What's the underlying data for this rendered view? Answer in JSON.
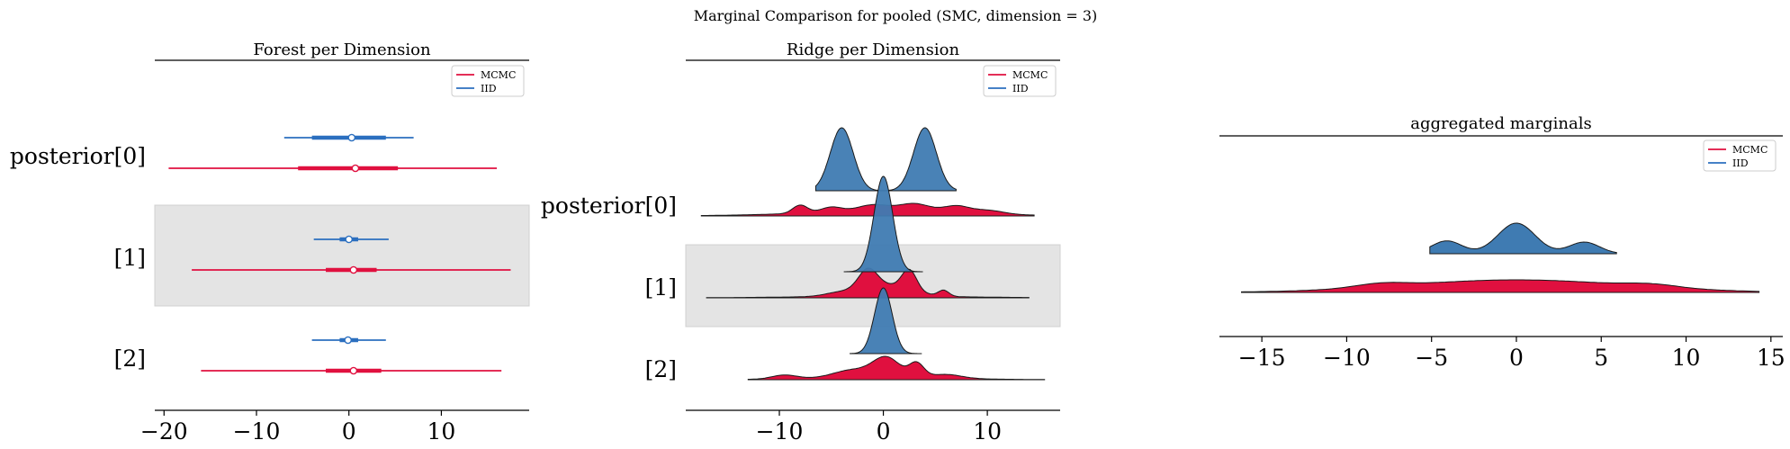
{
  "figure": {
    "suptitle": "Marginal Comparison for pooled (SMC, dimension = 3)"
  },
  "colors": {
    "mcmc": "#e0103f",
    "iid": "#2b6fbf",
    "iid_fill": "#3f7bb2",
    "band": "#e4e4e4",
    "axis": "#000000"
  },
  "legend": {
    "entries": [
      {
        "name": "MCMC",
        "color": "#e0103f"
      },
      {
        "name": "IID",
        "color": "#2b6fbf"
      }
    ]
  },
  "chart_data": [
    {
      "type": "forest",
      "title": "Forest per Dimension",
      "xlim": [
        -21,
        19.5
      ],
      "xticks": [
        -20,
        -10,
        0,
        10
      ],
      "ylabels": [
        "posterior[0]",
        "[1]",
        "[2]"
      ],
      "shaded_rows": [
        1
      ],
      "series": [
        {
          "name": "MCMC",
          "rows": [
            {
              "low": -19.5,
              "q1": -5.5,
              "median": 0.7,
              "q3": 5.3,
              "high": 16.0
            },
            {
              "low": -17.0,
              "q1": -2.5,
              "median": 0.5,
              "q3": 3.0,
              "high": 17.5
            },
            {
              "low": -16.0,
              "q1": -2.5,
              "median": 0.5,
              "q3": 3.5,
              "high": 16.5
            }
          ]
        },
        {
          "name": "IID",
          "rows": [
            {
              "low": -7.0,
              "q1": -4.0,
              "median": 0.3,
              "q3": 4.0,
              "high": 7.0
            },
            {
              "low": -3.8,
              "q1": -1.0,
              "median": 0.0,
              "q3": 1.0,
              "high": 4.3
            },
            {
              "low": -4.0,
              "q1": -1.0,
              "median": -0.1,
              "q3": 1.0,
              "high": 4.0
            }
          ]
        }
      ]
    },
    {
      "type": "ridge",
      "title": "Ridge per Dimension",
      "xlim": [
        -19,
        17
      ],
      "xticks": [
        -10,
        0,
        10
      ],
      "ylabels": [
        "posterior[0]",
        "[1]",
        "[2]"
      ],
      "shaded_rows": [
        1
      ],
      "series": [
        {
          "name": "MCMC",
          "rows": [
            {
              "range": [
                -17.5,
                14.5
              ],
              "peaks": [
                [
                  -8,
                  0.55,
                  0.7
                ],
                [
                  -5,
                  0.35,
                  1.0
                ],
                [
                  -1,
                  0.45,
                  1.5
                ],
                [
                  3,
                  0.55,
                  1.5
                ],
                [
                  7,
                  0.45,
                  1.2
                ],
                [
                  10,
                  0.25,
                  1.5
                ],
                [
                  0,
                  0.3,
                  8
                ]
              ]
            },
            {
              "range": [
                -17,
                14
              ],
              "peaks": [
                [
                  -1.5,
                  1.0,
                  0.9
                ],
                [
                  2.5,
                  1.0,
                  0.7
                ],
                [
                  0.5,
                  0.55,
                  2.2
                ],
                [
                  5.8,
                  0.3,
                  0.5
                ],
                [
                  -4,
                  0.2,
                  1.5
                ],
                [
                  0,
                  0.08,
                  8
                ]
              ]
            },
            {
              "range": [
                -13,
                15.5
              ],
              "peaks": [
                [
                  0.3,
                  1.0,
                  1.3
                ],
                [
                  3.2,
                  0.7,
                  0.7
                ],
                [
                  -3,
                  0.4,
                  1.8
                ],
                [
                  -9.5,
                  0.2,
                  1.2
                ],
                [
                  6,
                  0.2,
                  1.5
                ],
                [
                  0,
                  0.1,
                  7
                ]
              ]
            }
          ]
        },
        {
          "name": "IID",
          "rows": [
            {
              "range": [
                -6.5,
                7
              ],
              "peaks": [
                [
                  -4,
                  1.0,
                  1.1
                ],
                [
                  4,
                  1.0,
                  1.1
                ]
              ]
            },
            {
              "range": [
                -3.8,
                3.8
              ],
              "peaks": [
                [
                  0,
                  1.0,
                  0.9
                ]
              ]
            },
            {
              "range": [
                -3.2,
                3.7
              ],
              "peaks": [
                [
                  0,
                  1.0,
                  0.85
                ]
              ]
            }
          ]
        }
      ]
    },
    {
      "type": "density",
      "title": "aggregated marginals",
      "xlim": [
        -17.5,
        15.7
      ],
      "xticks": [
        -15,
        -10,
        -5,
        0,
        5,
        10,
        15
      ],
      "xticklabels": [
        "−15",
        "−10",
        "−5",
        "0",
        "5",
        "10",
        "15"
      ],
      "series": [
        {
          "name": "MCMC",
          "range": [
            -16.2,
            14.3
          ],
          "peaks": [
            [
              0,
              0.85,
              6.5
            ],
            [
              -8,
              0.25,
              1.5
            ],
            [
              8,
              0.2,
              1.5
            ]
          ]
        },
        {
          "name": "IID",
          "range": [
            -5.1,
            5.9
          ],
          "peaks": [
            [
              0,
              1.0,
              1.1
            ],
            [
              -4.1,
              0.42,
              0.9
            ],
            [
              4,
              0.38,
              0.9
            ]
          ]
        }
      ]
    }
  ]
}
